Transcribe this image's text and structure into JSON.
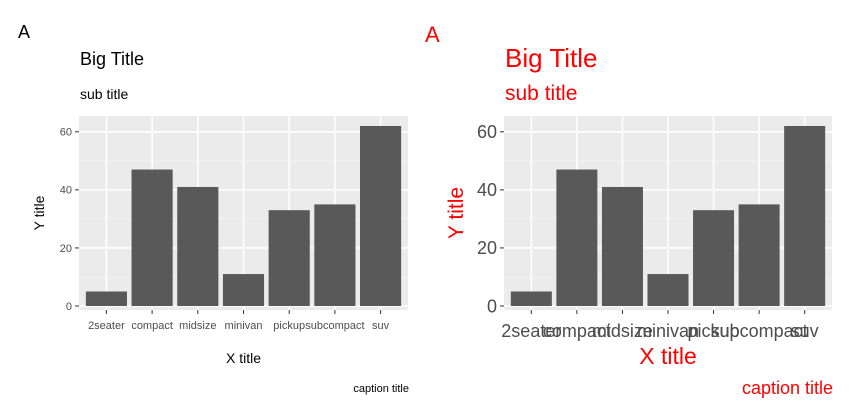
{
  "chart_data": [
    {
      "type": "bar",
      "tag": "A",
      "title": "Big Title",
      "subtitle": "sub title",
      "xlabel": "X title",
      "ylabel": "Y title",
      "caption": "caption title",
      "categories": [
        "2seater",
        "compact",
        "midsize",
        "minivan",
        "pickup",
        "subcompact",
        "suv"
      ],
      "values": [
        5,
        47,
        41,
        11,
        33,
        35,
        62
      ],
      "ylim": [
        0,
        62
      ],
      "yticks": [
        0,
        20,
        40,
        60
      ],
      "grid": true,
      "text_color": "#000000",
      "bar_color": "#595959",
      "panel_color": "#EBEBEB"
    },
    {
      "type": "bar",
      "tag": "A",
      "title": "Big Title",
      "subtitle": "sub title",
      "xlabel": "X title",
      "ylabel": "Y title",
      "caption": "caption title",
      "categories": [
        "2seater",
        "compact",
        "midsize",
        "minivan",
        "pickup",
        "subcompact",
        "suv"
      ],
      "values": [
        5,
        47,
        41,
        11,
        33,
        35,
        62
      ],
      "ylim": [
        0,
        62
      ],
      "yticks": [
        0,
        20,
        40,
        60
      ],
      "grid": true,
      "text_color": "#FF0000",
      "bar_color": "#595959",
      "panel_color": "#EBEBEB"
    }
  ]
}
